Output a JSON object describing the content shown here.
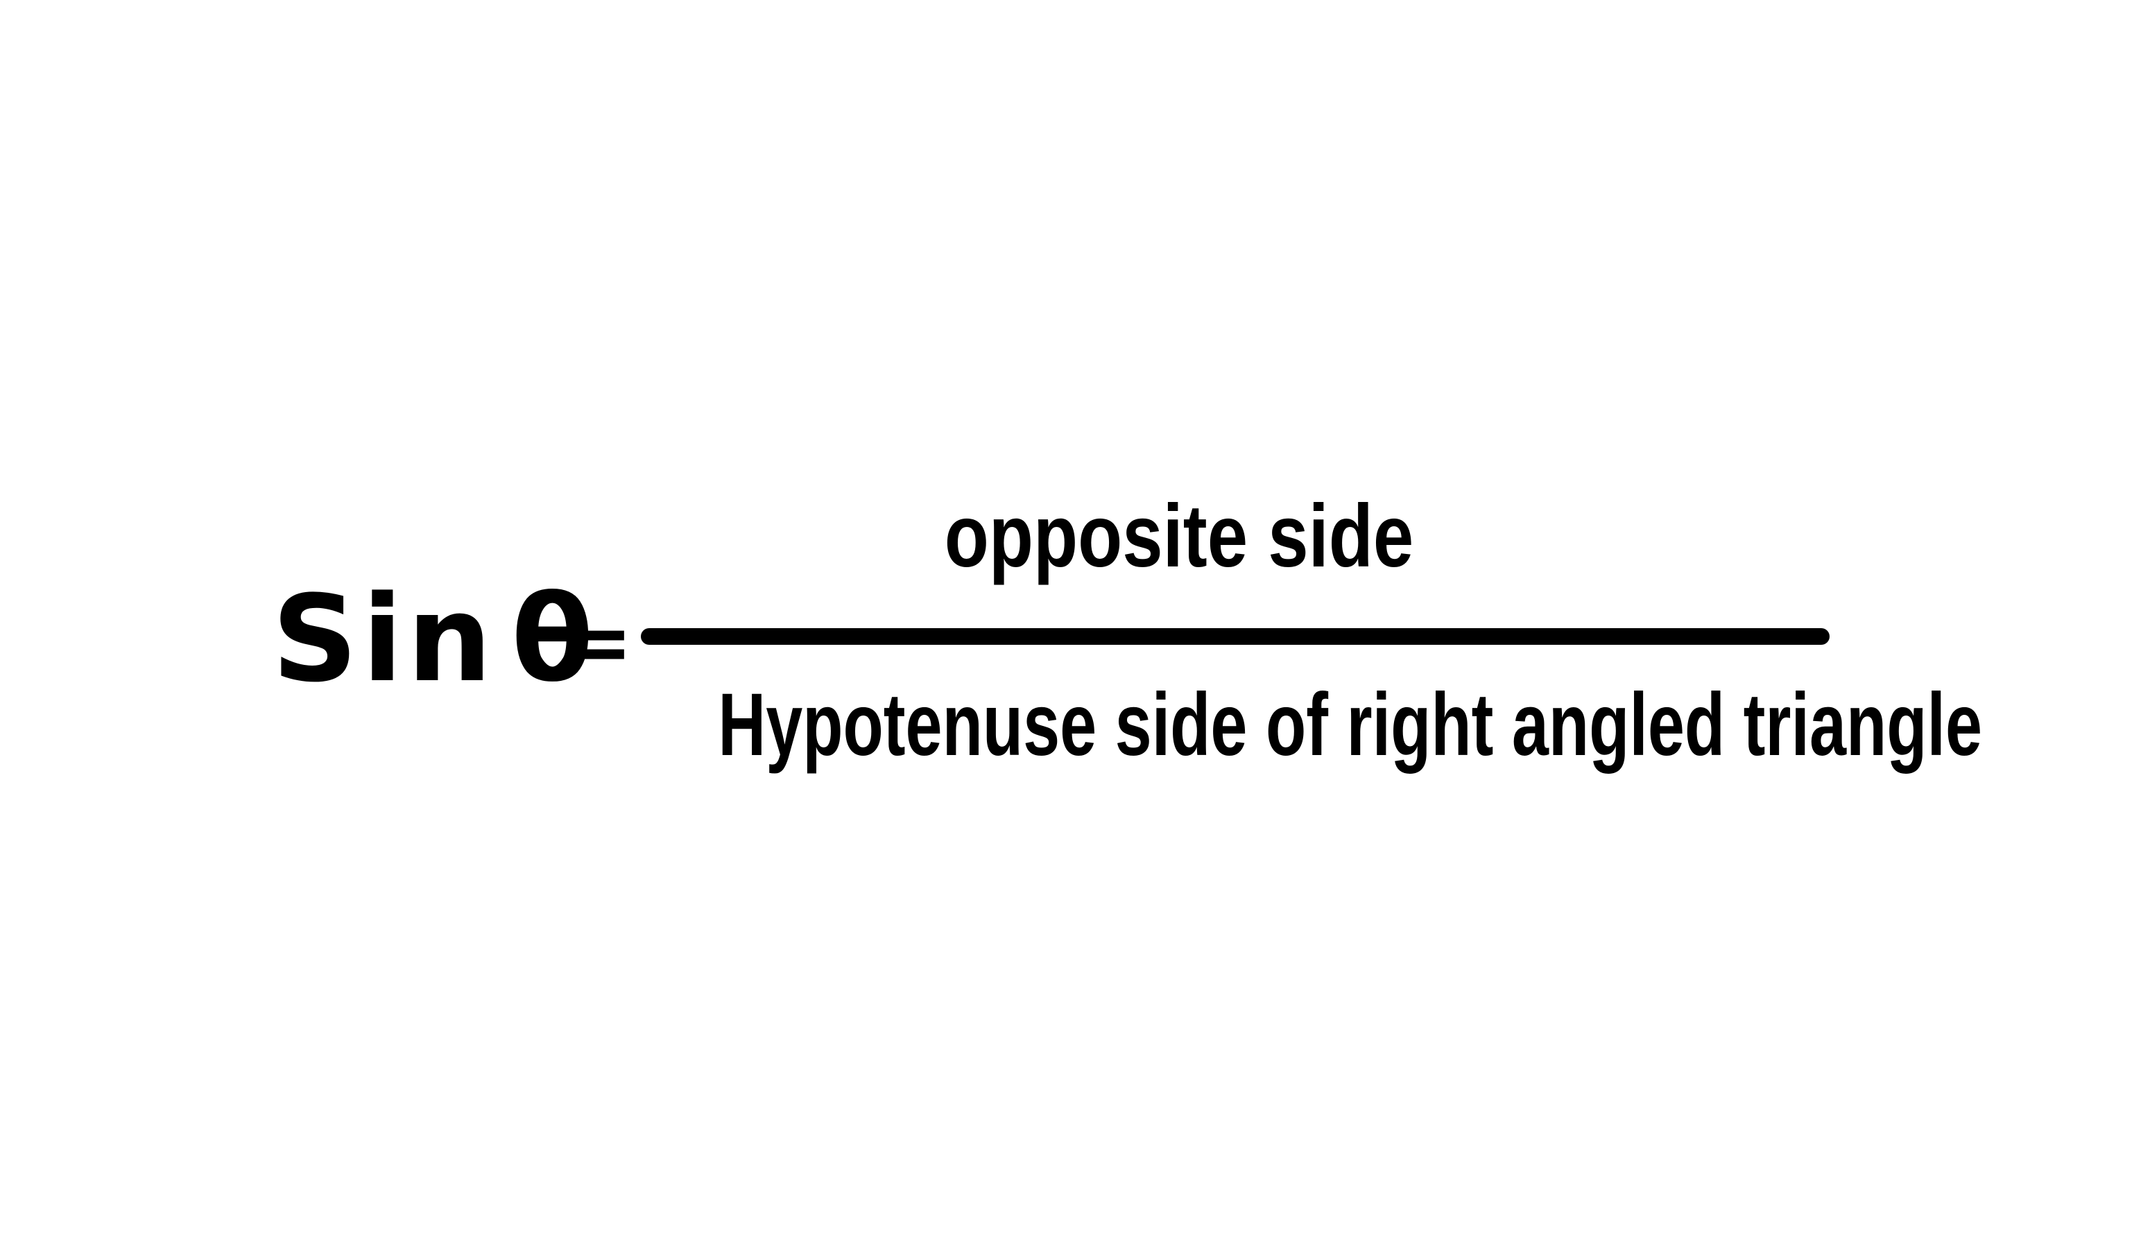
{
  "formula": {
    "function_name": "Sin",
    "angle_symbol": "θ",
    "equals": "=",
    "numerator": "opposite side",
    "denominator": "Hypotenuse side of right angled triangle"
  },
  "colors": {
    "background": "#ffffff",
    "ink": "#000000"
  }
}
